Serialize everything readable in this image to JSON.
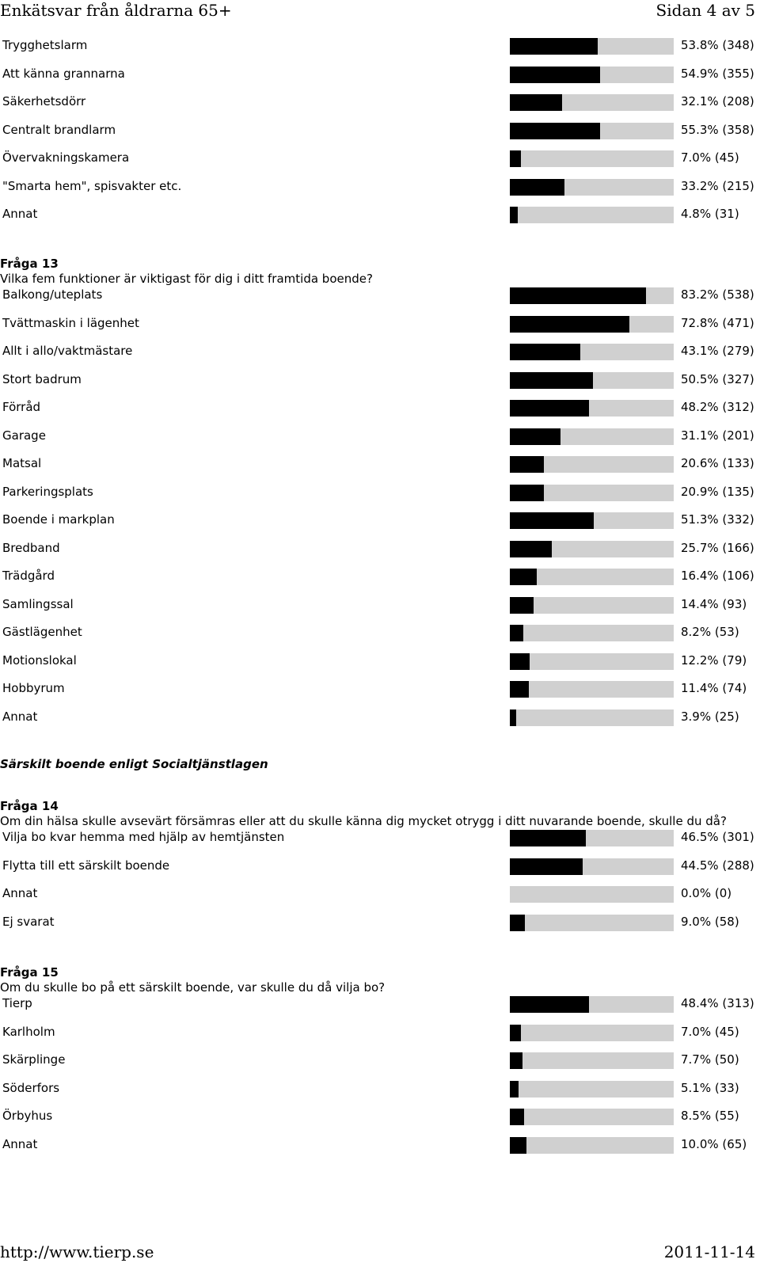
{
  "header": {
    "title": "Enkätsvar från åldrarna 65+",
    "page": "Sidan 4 av 5"
  },
  "footer": {
    "url": "http://www.tierp.se",
    "date": "2011-11-14"
  },
  "q12_continued": {
    "items": [
      {
        "label": "Trygghetslarm",
        "pct": 53.8,
        "value": "53.8% (348)"
      },
      {
        "label": "Att känna grannarna",
        "pct": 54.9,
        "value": "54.9% (355)"
      },
      {
        "label": "Säkerhetsdörr",
        "pct": 32.1,
        "value": "32.1% (208)"
      },
      {
        "label": "Centralt brandlarm",
        "pct": 55.3,
        "value": "55.3% (358)"
      },
      {
        "label": "Övervakningskamera",
        "pct": 7.0,
        "value": "7.0% (45)"
      },
      {
        "label": "\"Smarta hem\", spisvakter etc.",
        "pct": 33.2,
        "value": "33.2% (215)"
      },
      {
        "label": "Annat",
        "pct": 4.8,
        "value": "4.8% (31)"
      }
    ]
  },
  "q13": {
    "label": "Fråga 13",
    "text": "Vilka fem funktioner är viktigast för dig i ditt framtida boende?",
    "items": [
      {
        "label": "Balkong/uteplats",
        "pct": 83.2,
        "value": "83.2% (538)"
      },
      {
        "label": "Tvättmaskin i lägenhet",
        "pct": 72.8,
        "value": "72.8% (471)"
      },
      {
        "label": "Allt i allo/vaktmästare",
        "pct": 43.1,
        "value": "43.1% (279)"
      },
      {
        "label": "Stort badrum",
        "pct": 50.5,
        "value": "50.5% (327)"
      },
      {
        "label": "Förråd",
        "pct": 48.2,
        "value": "48.2% (312)"
      },
      {
        "label": "Garage",
        "pct": 31.1,
        "value": "31.1% (201)"
      },
      {
        "label": "Matsal",
        "pct": 20.6,
        "value": "20.6% (133)"
      },
      {
        "label": "Parkeringsplats",
        "pct": 20.9,
        "value": "20.9% (135)"
      },
      {
        "label": "Boende i markplan",
        "pct": 51.3,
        "value": "51.3% (332)"
      },
      {
        "label": "Bredband",
        "pct": 25.7,
        "value": "25.7% (166)"
      },
      {
        "label": "Trädgård",
        "pct": 16.4,
        "value": "16.4% (106)"
      },
      {
        "label": "Samlingssal",
        "pct": 14.4,
        "value": "14.4% (93)"
      },
      {
        "label": "Gästlägenhet",
        "pct": 8.2,
        "value": "8.2% (53)"
      },
      {
        "label": "Motionslokal",
        "pct": 12.2,
        "value": "12.2% (79)"
      },
      {
        "label": "Hobbyrum",
        "pct": 11.4,
        "value": "11.4% (74)"
      },
      {
        "label": "Annat",
        "pct": 3.9,
        "value": "3.9% (25)"
      }
    ]
  },
  "section_title": "Särskilt boende enligt Socialtjänstlagen",
  "q14": {
    "label": "Fråga 14",
    "text": "Om din hälsa skulle avsevärt försämras eller att du skulle känna dig mycket otrygg i ditt nuvarande boende, skulle du då?",
    "items": [
      {
        "label": "Vilja bo kvar hemma med hjälp av hemtjänsten",
        "pct": 46.5,
        "value": "46.5% (301)"
      },
      {
        "label": "Flytta till ett särskilt boende",
        "pct": 44.5,
        "value": "44.5% (288)"
      },
      {
        "label": "Annat",
        "pct": 0.0,
        "value": "0.0% (0)"
      },
      {
        "label": "Ej svarat",
        "pct": 9.0,
        "value": "9.0% (58)"
      }
    ]
  },
  "q15": {
    "label": "Fråga 15",
    "text": "Om du skulle bo på ett särskilt boende, var skulle du då vilja bo?",
    "items": [
      {
        "label": "Tierp",
        "pct": 48.4,
        "value": "48.4% (313)"
      },
      {
        "label": "Karlholm",
        "pct": 7.0,
        "value": "7.0% (45)"
      },
      {
        "label": "Skärplinge",
        "pct": 7.7,
        "value": "7.7% (50)"
      },
      {
        "label": "Söderfors",
        "pct": 5.1,
        "value": "5.1% (33)"
      },
      {
        "label": "Örbyhus",
        "pct": 8.5,
        "value": "8.5% (55)"
      },
      {
        "label": "Annat",
        "pct": 10.0,
        "value": "10.0% (65)"
      }
    ]
  }
}
